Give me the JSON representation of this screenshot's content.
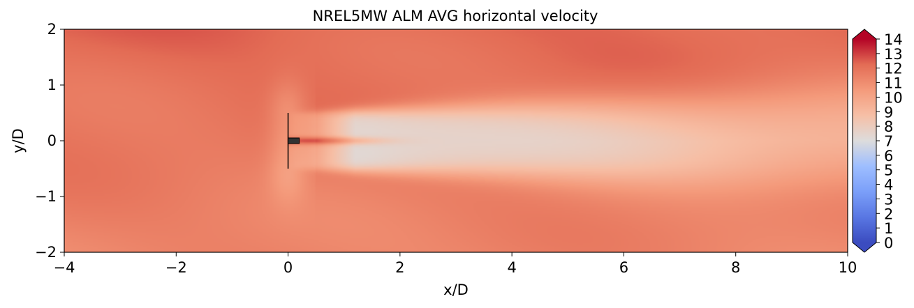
{
  "chart_data": {
    "type": "heatmap",
    "title": "NREL5MW ALM AVG horizontal velocity",
    "xlabel": "x/D",
    "ylabel": "y/D",
    "xlim": [
      -4,
      10
    ],
    "ylim": [
      -2,
      2
    ],
    "x_ticks": [
      -4,
      -2,
      0,
      2,
      4,
      6,
      8,
      10
    ],
    "y_ticks": [
      -2,
      -1,
      0,
      1,
      2
    ],
    "x_tick_labels": [
      "−4",
      "−2",
      "0",
      "2",
      "4",
      "6",
      "8",
      "10"
    ],
    "y_tick_labels": [
      "−2",
      "−1",
      "0",
      "1",
      "2"
    ],
    "colormap": "coolwarm",
    "colorbar": {
      "min": 0,
      "max": 14,
      "extend": "both",
      "ticks": [
        "0",
        "1",
        "2",
        "3",
        "4",
        "5",
        "6",
        "7",
        "8",
        "9",
        "10",
        "11",
        "12",
        "13",
        "14"
      ]
    },
    "rotor": {
      "x": 0,
      "y_min": -0.5,
      "y_max": 0.5
    },
    "nacelle": {
      "x_min": 0,
      "x_max": 0.2,
      "y_min": -0.05,
      "y_max": 0.05
    },
    "field": {
      "freestream_upper": 12.3,
      "freestream_lower": 11.3,
      "wake_min": 7.0,
      "wake_end_x": 10,
      "wake_end_value": 9.6
    },
    "grid": false
  }
}
